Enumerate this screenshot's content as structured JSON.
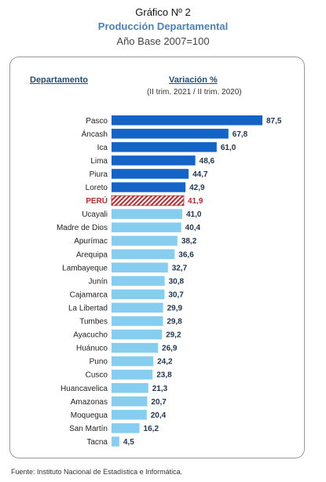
{
  "header": {
    "title": "Gráfico Nº 2",
    "subtitle": "Producción Departamental",
    "base": "Año Base 2007=100"
  },
  "columns": {
    "department": "Departamento",
    "variation": "Variación %",
    "period": "(II trim. 2021 / II trim. 2020)"
  },
  "source": "Fuente: Instituto Nacional de Estadística e Informática.",
  "colors": {
    "top_bars": "#1464c8",
    "other_bars": "#87cdf0",
    "highlight": "#c0282d",
    "text": "#222222"
  },
  "chart_data": {
    "type": "bar",
    "orientation": "horizontal",
    "categories": [
      "Pasco",
      "Áncash",
      "Ica",
      "Lima",
      "Piura",
      "Loreto",
      "PERÚ",
      "Ucayali",
      "Madre de Dios",
      "Apurímac",
      "Arequipa",
      "Lambayeque",
      "Junín",
      "Cajamarca",
      "La Libertad",
      "Tumbes",
      "Ayacucho",
      "Huánuco",
      "Puno",
      "Cusco",
      "Huancavelica",
      "Amazonas",
      "Moquegua",
      "San Martín",
      "Tacna"
    ],
    "values": [
      87.5,
      67.8,
      61.0,
      48.6,
      44.7,
      42.9,
      41.9,
      41.0,
      40.4,
      38.2,
      36.6,
      32.7,
      30.8,
      30.7,
      29.9,
      29.8,
      29.2,
      26.9,
      24.2,
      23.8,
      21.3,
      20.7,
      20.4,
      16.2,
      4.5
    ],
    "value_labels": [
      "87,5",
      "67,8",
      "61,0",
      "48,6",
      "44,7",
      "42,9",
      "41,9",
      "41,0",
      "40,4",
      "38,2",
      "36,6",
      "32,7",
      "30,8",
      "30,7",
      "29,9",
      "29,8",
      "29,2",
      "26,9",
      "24,2",
      "23,8",
      "21,3",
      "20,7",
      "20,4",
      "16,2",
      "4,5"
    ],
    "highlight_category": "PERÚ",
    "top_group_count": 6,
    "grid": false,
    "legend": "none"
  }
}
